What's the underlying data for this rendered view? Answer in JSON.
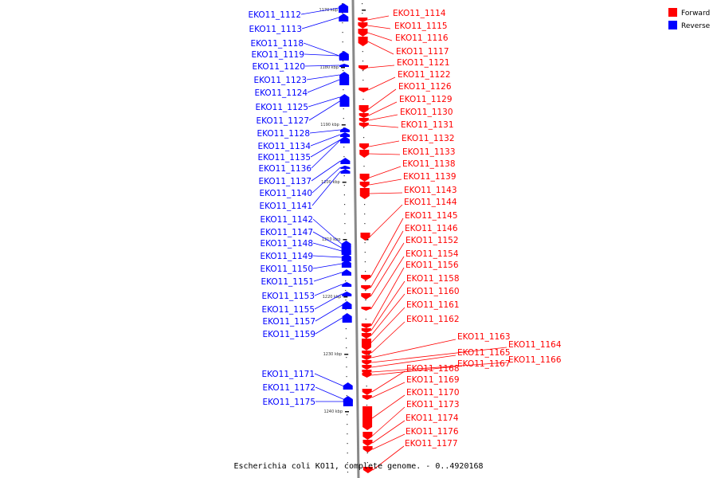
{
  "caption": "Escherichia coli KO11, complete genome. - 0..4920168",
  "legend": [
    {
      "label": "Forward",
      "color": "#ff0000"
    },
    {
      "label": "Reverse",
      "color": "#0000ff"
    }
  ],
  "colors": {
    "forward": "#ff0000",
    "reverse": "#0000ff",
    "axis": "#888888"
  },
  "scale_labels": [
    "1170 kbp",
    "1180 kbp",
    "1190 kbp",
    "1200 kbp",
    "1210 kbp",
    "1220 kbp",
    "1230 kbp",
    "1240 kbp"
  ],
  "reverse_genes": [
    "EKO11_1112",
    "EKO11_1113",
    "EKO11_1118",
    "EKO11_1119",
    "EKO11_1120",
    "EKO11_1123",
    "EKO11_1124",
    "EKO11_1125",
    "EKO11_1127",
    "EKO11_1128",
    "EKO11_1134",
    "EKO11_1135",
    "EKO11_1136",
    "EKO11_1137",
    "EKO11_1140",
    "EKO11_1141",
    "EKO11_1142",
    "EKO11_1147",
    "EKO11_1148",
    "EKO11_1149",
    "EKO11_1150",
    "EKO11_1151",
    "EKO11_1153",
    "EKO11_1155",
    "EKO11_1157",
    "EKO11_1159",
    "EKO11_1171",
    "EKO11_1172",
    "EKO11_1175"
  ],
  "forward_genes": [
    "EKO11_1114",
    "EKO11_1115",
    "EKO11_1116",
    "EKO11_1117",
    "EKO11_1121",
    "EKO11_1122",
    "EKO11_1126",
    "EKO11_1129",
    "EKO11_1130",
    "EKO11_1131",
    "EKO11_1132",
    "EKO11_1133",
    "EKO11_1138",
    "EKO11_1139",
    "EKO11_1143",
    "EKO11_1144",
    "EKO11_1145",
    "EKO11_1146",
    "EKO11_1152",
    "EKO11_1154",
    "EKO11_1156",
    "EKO11_1158",
    "EKO11_1160",
    "EKO11_1161",
    "EKO11_1162",
    "EKO11_1163",
    "EKO11_1164",
    "EKO11_1165",
    "EKO11_1166",
    "EKO11_1167",
    "EKO11_1168",
    "EKO11_1169",
    "EKO11_1170",
    "EKO11_1173",
    "EKO11_1174",
    "EKO11_1176",
    "EKO11_1177"
  ]
}
